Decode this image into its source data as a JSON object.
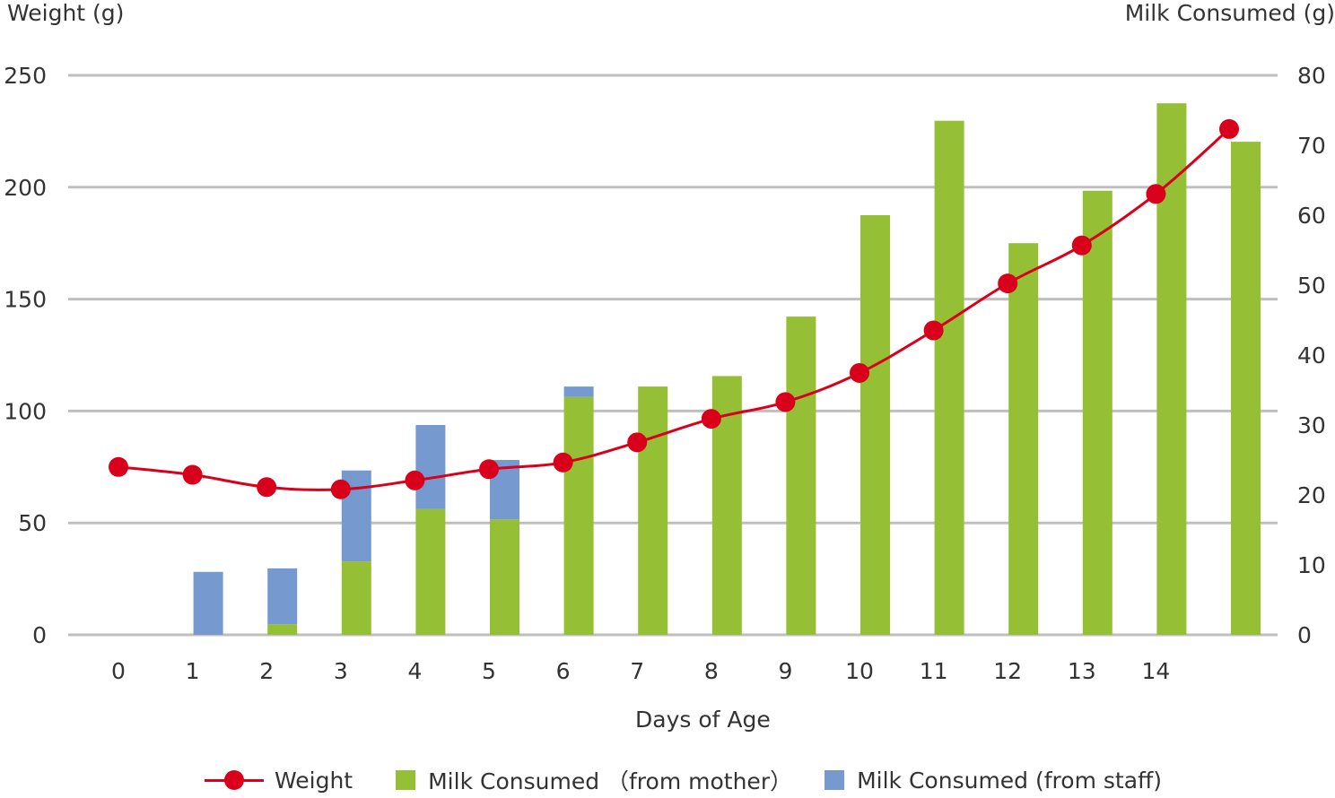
{
  "chart_data": {
    "type": "bar+line",
    "title": "",
    "y_left_label": "Weight (g)",
    "y_right_label": "Milk Consumed (g)",
    "xlabel": "Days of Age",
    "categories": [
      "0",
      "1",
      "2",
      "3",
      "4",
      "5",
      "6",
      "7",
      "8",
      "9",
      "10",
      "11",
      "12",
      "13",
      "14",
      ""
    ],
    "y_left_ticks": [
      "0",
      "50",
      "100",
      "150",
      "200",
      "250"
    ],
    "y_right_ticks": [
      "0",
      "10",
      "20",
      "30",
      "40",
      "50",
      "60",
      "70",
      "80"
    ],
    "ylim_left": [
      0,
      250
    ],
    "ylim_right": [
      0,
      80
    ],
    "grid": true,
    "legend_position": "bottom",
    "series": [
      {
        "name": "Weight",
        "type": "line",
        "axis": "left",
        "color": "#d9001b",
        "values": [
          75,
          71.5,
          66,
          65,
          69,
          74,
          77,
          86,
          96.5,
          104,
          117,
          136,
          157,
          174,
          197,
          226
        ]
      },
      {
        "name": "Milk Consumed （from mother）",
        "type": "bar",
        "axis": "right",
        "color": "#95bf35",
        "values": [
          0,
          0,
          1.5,
          10.5,
          18,
          16.5,
          34,
          35.5,
          37,
          45.5,
          60,
          73.5,
          56,
          63.5,
          76,
          70.5
        ]
      },
      {
        "name": "Milk Consumed (from staff)",
        "type": "bar",
        "axis": "right",
        "color": "#7699cf",
        "values": [
          0,
          9,
          8,
          13,
          12,
          8.5,
          1.5,
          0,
          0,
          0,
          0,
          0,
          0,
          0,
          0,
          0
        ]
      }
    ]
  }
}
